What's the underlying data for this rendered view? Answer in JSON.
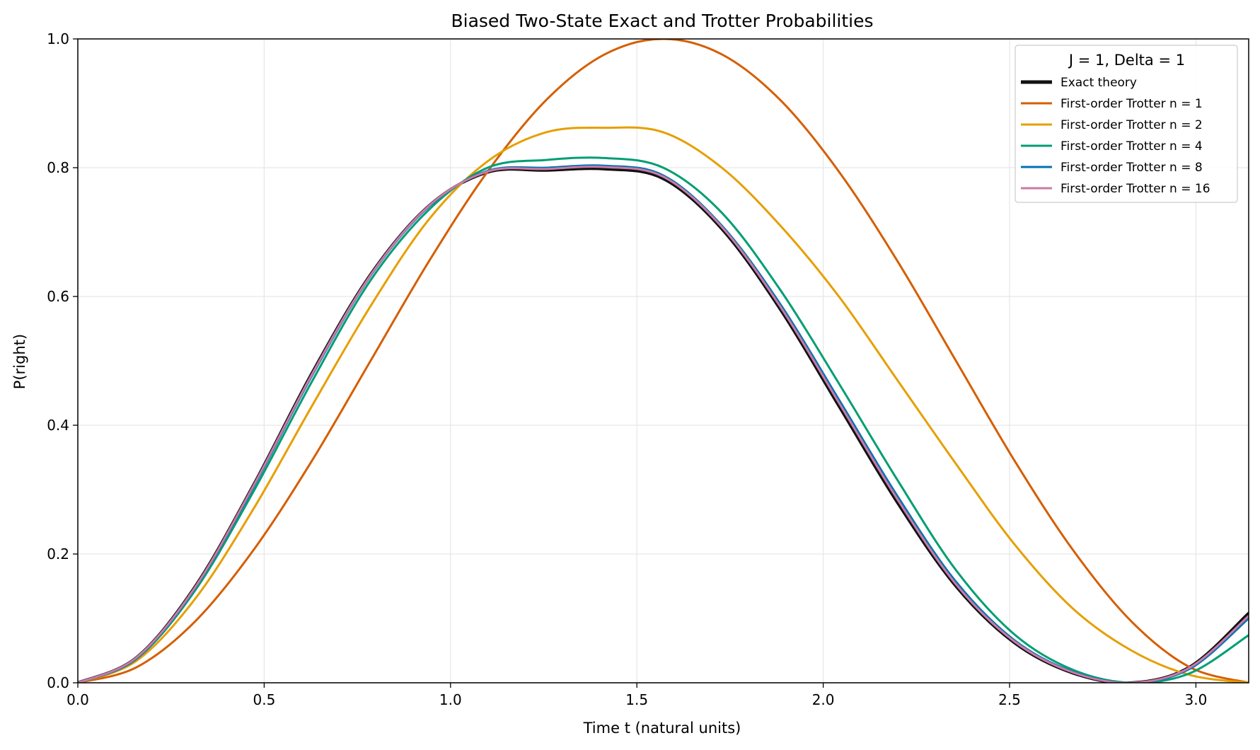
{
  "chart_data": {
    "type": "line",
    "title": "Biased Two-State Exact and Trotter Probabilities",
    "xlabel": "Time t (natural units)",
    "ylabel": "P(right)",
    "xlim": [
      0,
      3.14159
    ],
    "ylim": [
      0,
      1
    ],
    "x_ticks": [
      "0.0",
      "0.5",
      "1.0",
      "1.5",
      "2.0",
      "2.5",
      "3.0"
    ],
    "y_ticks": [
      "0.0",
      "0.2",
      "0.4",
      "0.6",
      "0.8",
      "1.0"
    ],
    "grid": true,
    "legend_position": "top-right",
    "legend_title": "J = 1, Delta = 1",
    "x": [
      0,
      0.1571,
      0.3142,
      0.4712,
      0.6283,
      0.7854,
      0.9425,
      1.0996,
      1.2566,
      1.4137,
      1.5708,
      1.7279,
      1.885,
      2.042,
      2.1991,
      2.3562,
      2.5133,
      2.6704,
      2.8274,
      2.9845,
      3.1416
    ],
    "series": [
      {
        "name": "Exact theory",
        "color": "#111111",
        "values": [
          0,
          0.039,
          0.149,
          0.307,
          0.481,
          0.634,
          0.741,
          0.793,
          0.796,
          0.798,
          0.783,
          0.705,
          0.58,
          0.43,
          0.28,
          0.15,
          0.062,
          0.015,
          0.0,
          0.025,
          0.108
        ]
      },
      {
        "name": "First-order Trotter n = 1",
        "color": "#d55e00",
        "values": [
          0,
          0.024,
          0.095,
          0.206,
          0.345,
          0.5,
          0.655,
          0.794,
          0.905,
          0.976,
          1.0,
          0.976,
          0.905,
          0.794,
          0.655,
          0.5,
          0.345,
          0.206,
          0.095,
          0.024,
          0.0
        ]
      },
      {
        "name": "First-order Trotter n = 2",
        "color": "#e69f00",
        "values": [
          0,
          0.034,
          0.13,
          0.27,
          0.43,
          0.585,
          0.72,
          0.81,
          0.855,
          0.862,
          0.855,
          0.8,
          0.71,
          0.6,
          0.47,
          0.34,
          0.215,
          0.115,
          0.05,
          0.012,
          0.0
        ]
      },
      {
        "name": "First-order Trotter n = 4",
        "color": "#009e73",
        "values": [
          0,
          0.037,
          0.143,
          0.297,
          0.468,
          0.625,
          0.735,
          0.8,
          0.812,
          0.815,
          0.8,
          0.73,
          0.61,
          0.465,
          0.315,
          0.175,
          0.075,
          0.02,
          0.0,
          0.015,
          0.074
        ]
      },
      {
        "name": "First-order Trotter n = 8",
        "color": "#0072b2",
        "values": [
          0,
          0.038,
          0.147,
          0.304,
          0.477,
          0.632,
          0.74,
          0.795,
          0.8,
          0.803,
          0.788,
          0.71,
          0.588,
          0.44,
          0.29,
          0.157,
          0.066,
          0.017,
          0.0,
          0.022,
          0.1
        ]
      },
      {
        "name": "First-order Trotter n = 16",
        "color": "#cc79a7",
        "values": [
          0,
          0.039,
          0.148,
          0.306,
          0.479,
          0.633,
          0.741,
          0.794,
          0.798,
          0.801,
          0.786,
          0.708,
          0.584,
          0.435,
          0.285,
          0.153,
          0.064,
          0.016,
          0.0,
          0.024,
          0.104
        ]
      }
    ]
  }
}
